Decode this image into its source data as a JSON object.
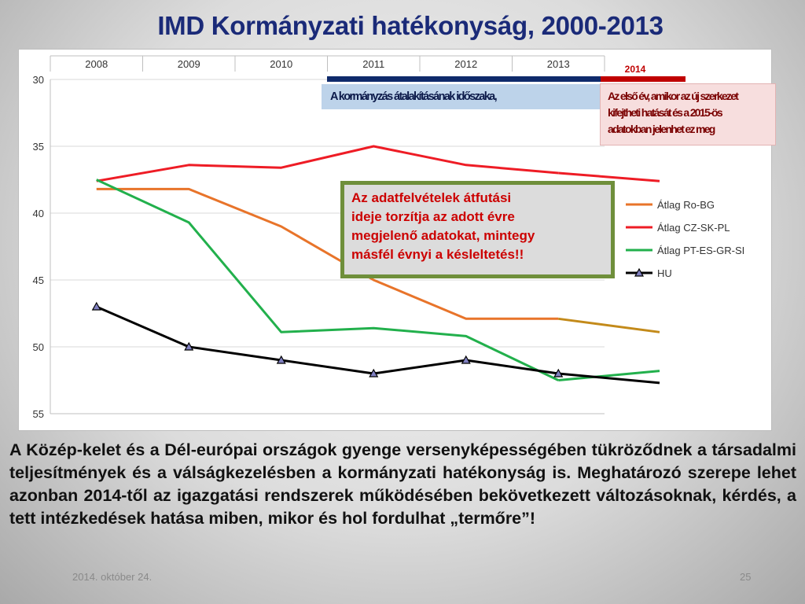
{
  "slide": {
    "title": "IMD Kormányzati hatékonyság, 2000-2013",
    "body_text": "A Közép-kelet és a Dél-európai országok gyenge versenyképességében tükröződnek a társadalmi teljesítmények és a válságkezelésben a kormányzati hatékonyság is. Meghatározó szerepe lehet azonban 2014-től az igazgatási rendszerek működésében bekövetkezett változásoknak, kérdés, a tett intézkedések hatása miben, mikor és hol fordulhat „termőre”!",
    "footer_date": "2014. október 24.",
    "page_number": "25"
  },
  "callouts": {
    "reform_period": "A kormányzás átalakításának időszaka,",
    "year_2014": "2014",
    "first_year_lines": [
      "Az első év, amikor az új szerkezet",
      "kifejtheti hatását és a 2015-ös",
      "adatokban jelenhet ez meg"
    ],
    "note_lines": [
      "Az adatfelvételek átfutási",
      "ideje torzítja az adott évre",
      "megjelenő adatokat, mintegy",
      "másfél évnyi a késleltetés!!"
    ]
  },
  "colors": {
    "ro_bg": "#e8742a",
    "ro_bg_projection": "#c38a1a",
    "cz_sk_pl": "#ee1c25",
    "pt_es_gr_si": "#22b04c",
    "hu": "#000000",
    "hu_marker": "#8080c0",
    "period_bar_blue": "#0f2a6b",
    "period_bar_red": "#c00000",
    "note_border": "#6f8f3b",
    "title": "#1a2a78"
  },
  "chart_data": {
    "type": "line",
    "x_axis_position": "top",
    "categories": [
      "2008",
      "2009",
      "2010",
      "2011",
      "2012",
      "2013",
      "2014"
    ],
    "ylim": [
      55,
      30
    ],
    "y_reversed": true,
    "yticks": [
      "30",
      "35",
      "40",
      "45",
      "50",
      "55"
    ],
    "grid": true,
    "legend_position": "right",
    "series": [
      {
        "name": "Átlag Ro-BG",
        "values": [
          38.2,
          38.2,
          41.0,
          45.0,
          47.9,
          47.9,
          48.9
        ],
        "projected_from_index": 5
      },
      {
        "name": "Átlag CZ-SK-PL",
        "values": [
          37.6,
          36.4,
          36.6,
          35.0,
          36.4,
          37.0,
          37.6
        ],
        "projected_from_index": 5
      },
      {
        "name": "Átlag PT-ES-GR-SI",
        "values": [
          37.5,
          40.7,
          48.9,
          48.6,
          49.2,
          52.5,
          51.8
        ],
        "projected_from_index": 5
      },
      {
        "name": "HU",
        "values": [
          47.0,
          50.0,
          51.0,
          52.0,
          51.0,
          52.0,
          52.7
        ],
        "projected_from_index": 5,
        "marker": "triangle"
      }
    ]
  }
}
